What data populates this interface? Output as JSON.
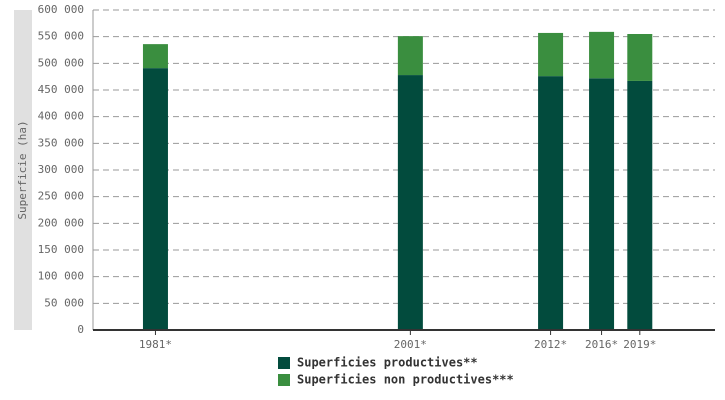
{
  "chart_data": {
    "type": "stacked-bar",
    "y_label": "Superficie (ha)",
    "x": [
      1981,
      2001,
      2012,
      2016,
      2019
    ],
    "xticks": [
      {
        "value": 1981,
        "label": "1981*"
      },
      {
        "value": 2001,
        "label": "2001*"
      },
      {
        "value": 2012,
        "label": "2012*"
      },
      {
        "value": 2016,
        "label": "2016*"
      },
      {
        "value": 2019,
        "label": "2019*"
      }
    ],
    "xlim": [
      1976.1,
      2024.9
    ],
    "ylim": [
      0,
      600000
    ],
    "yticks": [
      {
        "value": 0,
        "label": "0"
      },
      {
        "value": 50000,
        "label": "50 000"
      },
      {
        "value": 100000,
        "label": "100 000"
      },
      {
        "value": 150000,
        "label": "150 000"
      },
      {
        "value": 200000,
        "label": "200 000"
      },
      {
        "value": 250000,
        "label": "250 000"
      },
      {
        "value": 300000,
        "label": "300 000"
      },
      {
        "value": 350000,
        "label": "350 000"
      },
      {
        "value": 400000,
        "label": "400 000"
      },
      {
        "value": 450000,
        "label": "450 000"
      },
      {
        "value": 500000,
        "label": "500 000"
      },
      {
        "value": 550000,
        "label": "550 000"
      },
      {
        "value": 600000,
        "label": "600 000"
      }
    ],
    "grid": true,
    "series": [
      {
        "name": "Superficies productives**",
        "color": "#024b3d",
        "values": [
          491000,
          478000,
          476000,
          472000,
          467000
        ]
      },
      {
        "name": "Superficies non productives***",
        "color": "#3a8e3f",
        "values": [
          45000,
          73000,
          81000,
          87000,
          88000
        ]
      }
    ]
  }
}
